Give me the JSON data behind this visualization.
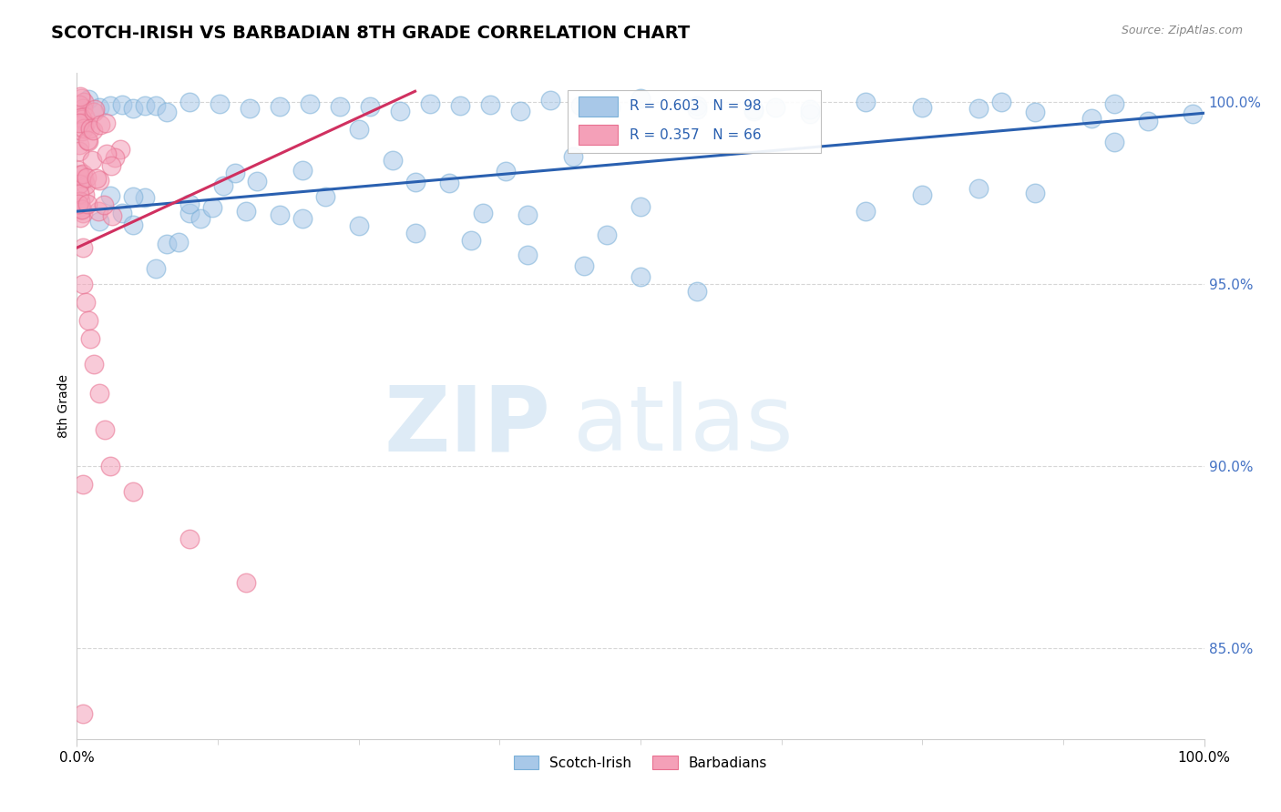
{
  "title": "SCOTCH-IRISH VS BARBADIAN 8TH GRADE CORRELATION CHART",
  "source_text": "Source: ZipAtlas.com",
  "ylabel": "8th Grade",
  "xlim": [
    0.0,
    1.0
  ],
  "ylim": [
    0.825,
    1.008
  ],
  "yticks": [
    0.85,
    0.9,
    0.95,
    1.0
  ],
  "ytick_labels": [
    "85.0%",
    "90.0%",
    "95.0%",
    "100.0%"
  ],
  "xticks": [
    0.0,
    1.0
  ],
  "xtick_labels": [
    "0.0%",
    "100.0%"
  ],
  "legend_R_blue": "R = 0.603",
  "legend_N_blue": "N = 98",
  "legend_R_pink": "R = 0.357",
  "legend_N_pink": "N = 66",
  "blue_color": "#a8c8e8",
  "blue_edge_color": "#7ab0d8",
  "pink_color": "#f4a0b8",
  "pink_edge_color": "#e87090",
  "blue_line_color": "#2a60b0",
  "pink_line_color": "#d03060",
  "legend_text_color": "#2a60b0",
  "tick_color": "#4472c4",
  "figsize": [
    14.06,
    8.92
  ],
  "dpi": 100,
  "blue_trend": [
    0.0,
    1.0,
    0.97,
    0.997
  ],
  "pink_trend": [
    0.0,
    0.3,
    0.96,
    1.003
  ]
}
